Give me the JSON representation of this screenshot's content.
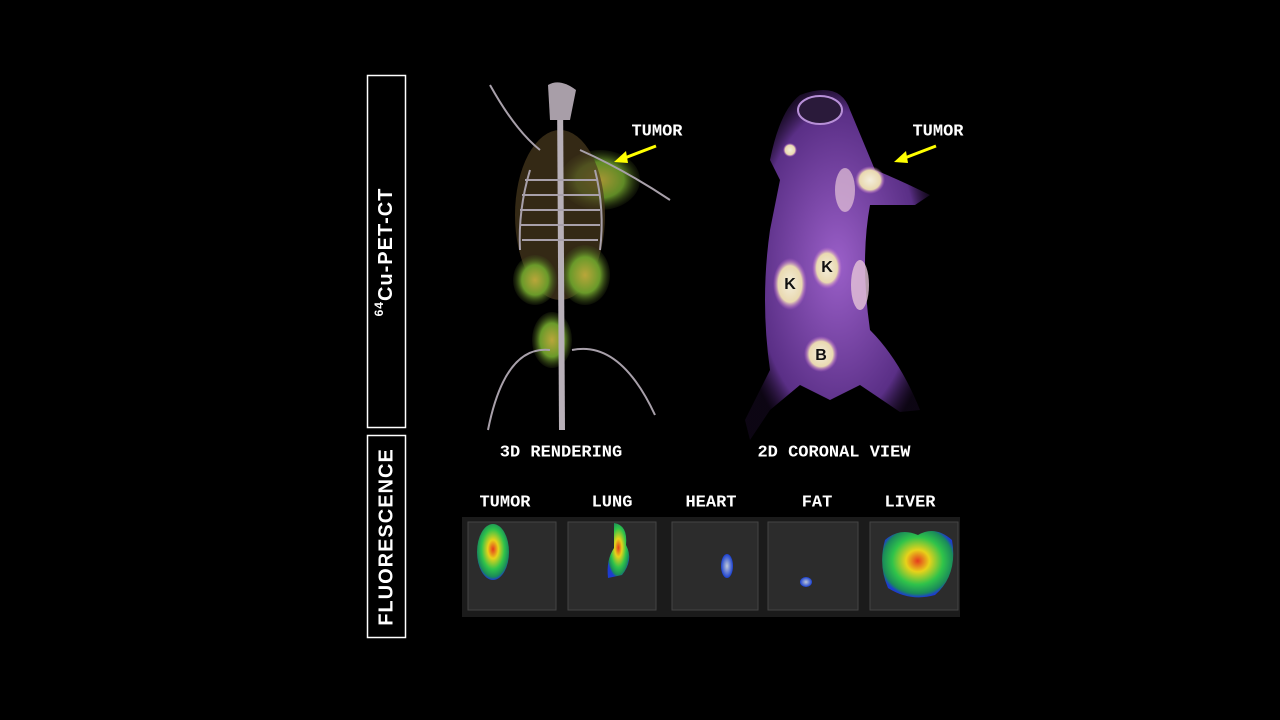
{
  "side_labels": {
    "pet_ct": {
      "superscript": "64",
      "text": "Cu-PET-CT"
    },
    "fluorescence": "FLUORESCENCE"
  },
  "panels": [
    {
      "caption": "3D RENDERING",
      "annotation": "TUMOR"
    },
    {
      "caption": "2D CORONAL VIEW",
      "annotation": "TUMOR",
      "organ_marks": [
        "K",
        "K",
        "B"
      ]
    }
  ],
  "fluorescence_organs": [
    "TUMOR",
    "LUNG",
    "HEART",
    "FAT",
    "LIVER"
  ]
}
